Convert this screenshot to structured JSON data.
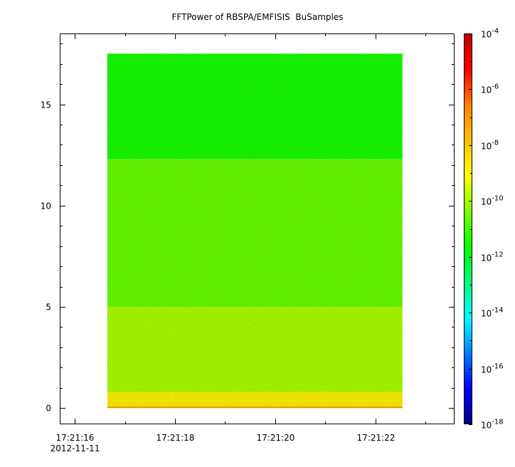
{
  "chart_data": {
    "type": "heatmap",
    "title": "FFTPower of RBSPA/EMFISIS  BuSamples",
    "xlabel": "",
    "ylabel": "",
    "x_date_label": "2012-11-11",
    "x_ticks": [
      "17:21:16",
      "17:21:18",
      "17:21:20",
      "17:21:22"
    ],
    "xlim": [
      "17:21:15.700",
      "17:21:23.580"
    ],
    "data_xrange": [
      "17:21:16.650",
      "17:21:22.540"
    ],
    "y_ticks": [
      0,
      5,
      10,
      15
    ],
    "ylim": [
      -0.8,
      18.5
    ],
    "data_yrange": [
      0,
      17.5
    ],
    "band_break_y": 12.3,
    "colorbar": {
      "scale": "log",
      "range": [
        1e-18,
        0.0001
      ],
      "tick_exponents": [
        -18,
        -16,
        -14,
        -12,
        -10,
        -8,
        -6,
        -4
      ],
      "tick_base": "10",
      "colormap": [
        "#00007f",
        "#0000ff",
        "#007fff",
        "#00ffff",
        "#00ff7f",
        "#00ff00",
        "#7fff00",
        "#ffff00",
        "#ffbf00",
        "#ff7f00",
        "#ff0000",
        "#bf0000"
      ]
    },
    "regions": [
      {
        "y": [
          0,
          0.08
        ],
        "log10_power": -7.2
      },
      {
        "y": [
          0.08,
          0.8
        ],
        "log10_power": -8.8
      },
      {
        "y": [
          0.8,
          5.0
        ],
        "log10_power": -10.0
      },
      {
        "y": [
          5.0,
          12.3
        ],
        "log10_power": -10.7
      },
      {
        "y": [
          12.3,
          17.5
        ],
        "log10_power": -11.6
      }
    ],
    "colors": {
      "background": "#ffffff",
      "axis": "#000000"
    }
  }
}
